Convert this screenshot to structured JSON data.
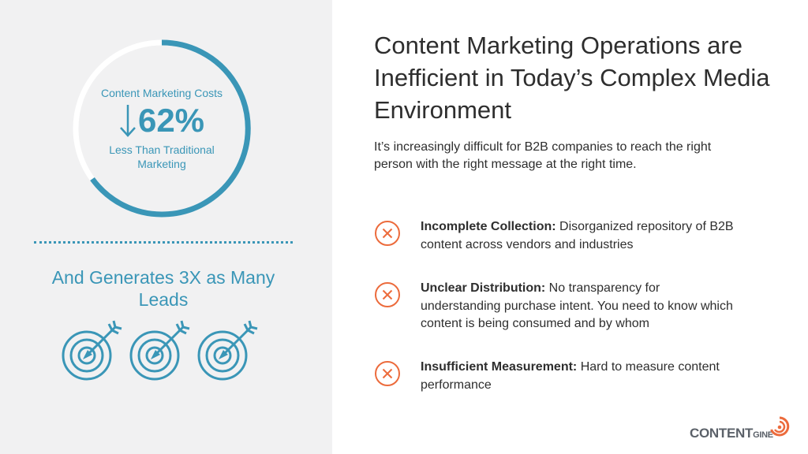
{
  "left": {
    "ring_caption_top": "Content Marketing Costs",
    "ring_percent": "62%",
    "ring_caption_bottom": "Less Than Traditional Marketing",
    "leads_text": "And Generates 3X as Many Leads",
    "target_icons": [
      "target-icon",
      "target-icon",
      "target-icon"
    ]
  },
  "headline": "Content Marketing Operations are Inefficient in Today’s Complex Media Environment",
  "intro": "It’s increasingly difficult for B2B companies to reach the right person with the right message at the right time.",
  "issues": [
    {
      "title": "Incomplete Collection:",
      "text": " Disorganized repository of B2B content across vendors and industries"
    },
    {
      "title": "Unclear Distribution:",
      "text": " No transparency for understanding purchase intent. You need to know which content is being consumed and by whom"
    },
    {
      "title": "Insufficient Measurement:",
      "text": " Hard to measure content performance"
    }
  ],
  "logo": {
    "main": "CONTENT",
    "suffix": "GINE"
  },
  "colors": {
    "accent_blue": "#3a96b7",
    "accent_orange": "#ec6b3c",
    "panel_gray": "#f1f1f2",
    "text_dark": "#2e2e2e"
  }
}
